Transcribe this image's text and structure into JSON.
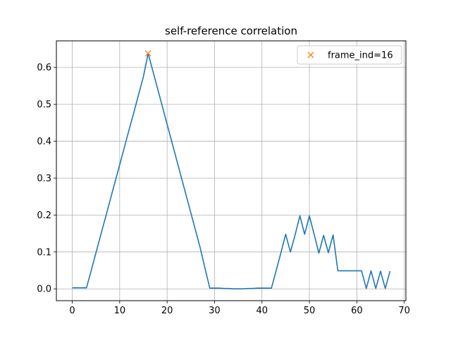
{
  "chart_data": {
    "type": "line",
    "title": "self-reference correlation",
    "xlabel": "",
    "ylabel": "",
    "xlim": [
      -3.35,
      70.35
    ],
    "ylim": [
      -0.032,
      0.672
    ],
    "xticks": [
      0,
      10,
      20,
      30,
      40,
      50,
      60,
      70
    ],
    "yticks": [
      0.0,
      0.1,
      0.2,
      0.3,
      0.4,
      0.5,
      0.6
    ],
    "xtick_labels": [
      "0",
      "10",
      "20",
      "30",
      "40",
      "50",
      "60",
      "70"
    ],
    "ytick_labels": [
      "0.0",
      "0.1",
      "0.2",
      "0.3",
      "0.4",
      "0.5",
      "0.6"
    ],
    "grid": true,
    "legend_position": "top-right",
    "series": [
      {
        "color": "#1f77b4",
        "x": [
          0,
          1,
          2,
          3,
          4,
          5,
          6,
          7,
          8,
          9,
          10,
          11,
          12,
          13,
          14,
          15,
          16,
          17,
          18,
          19,
          20,
          21,
          22,
          23,
          24,
          25,
          26,
          27,
          28,
          29,
          30,
          31,
          32,
          33,
          34,
          35,
          36,
          37,
          38,
          39,
          40,
          41,
          42,
          43,
          44,
          45,
          46,
          47,
          48,
          49,
          50,
          51,
          52,
          53,
          54,
          55,
          56,
          57,
          58,
          59,
          60,
          61,
          62,
          63,
          64,
          65,
          66,
          67
        ],
        "values": [
          0.003,
          0.003,
          0.003,
          0.003,
          0.05,
          0.098,
          0.146,
          0.193,
          0.241,
          0.289,
          0.336,
          0.384,
          0.432,
          0.479,
          0.527,
          0.575,
          0.638,
          0.59,
          0.542,
          0.494,
          0.446,
          0.398,
          0.35,
          0.302,
          0.254,
          0.206,
          0.158,
          0.11,
          0.055,
          0.002,
          0.002,
          0.002,
          0.001,
          0.001,
          0.0,
          0.0,
          0.0,
          0.001,
          0.001,
          0.002,
          0.002,
          0.002,
          0.002,
          0.05,
          0.098,
          0.148,
          0.1,
          0.147,
          0.198,
          0.148,
          0.198,
          0.148,
          0.097,
          0.145,
          0.098,
          0.146,
          0.049,
          0.049,
          0.049,
          0.049,
          0.049,
          0.049,
          0.001,
          0.049,
          0.001,
          0.048,
          0.001,
          0.048
        ]
      },
      {
        "name": "frame_ind=16",
        "color": "#ff7f0e",
        "marker": "x",
        "x": [
          16
        ],
        "values": [
          0.638
        ]
      }
    ]
  }
}
